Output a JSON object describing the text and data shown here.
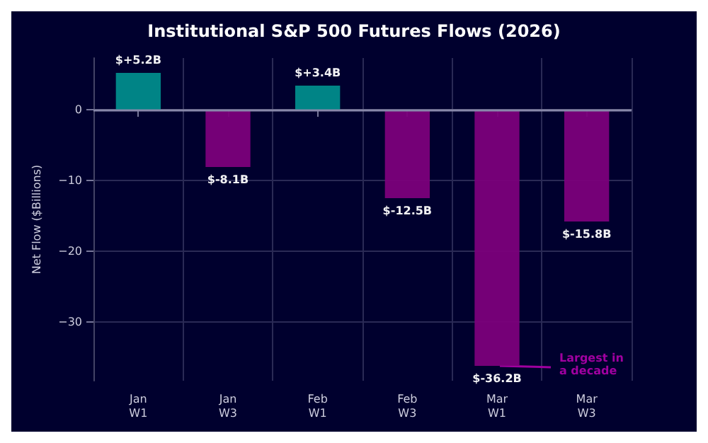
{
  "chart_data": {
    "type": "bar",
    "title": "Institutional S&P 500 Futures Flows (2026)",
    "ylabel": "Net Flow ($Billions)",
    "categories": [
      "Jan\nW1",
      "Jan\nW3",
      "Feb\nW1",
      "Feb\nW3",
      "Mar\nW1",
      "Mar\nW3"
    ],
    "values": [
      5.2,
      -8.1,
      3.4,
      -12.5,
      -36.2,
      -15.8
    ],
    "colors": [
      "#008b8b",
      "#7b007b",
      "#008b8b",
      "#7b007b",
      "#7b007b",
      "#7b007b"
    ],
    "value_labels": [
      "$+5.2B",
      "$-8.1B",
      "$+3.4B",
      "$-12.5B",
      "$-36.2B",
      "$-15.8B"
    ],
    "ylim": [
      -38.3,
      7.3
    ],
    "yticks": [
      -30,
      -20,
      -10,
      0
    ],
    "ref_lines": [
      {
        "axis": "y",
        "value": 0,
        "color": "#8888aa"
      }
    ],
    "annotations": [
      {
        "text": "Largest in\na decade",
        "x": "Mar\nW1",
        "y": -36.2
      }
    ],
    "grid": true
  }
}
